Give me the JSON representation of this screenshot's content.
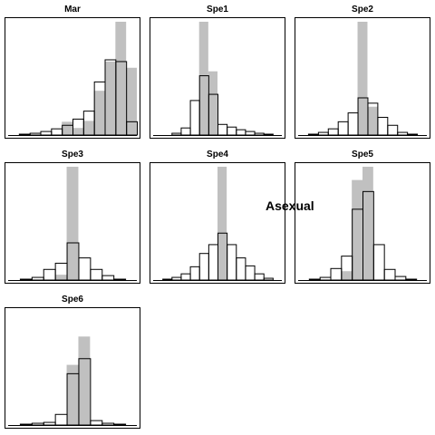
{
  "figure": {
    "overlay_label": "Asexual"
  },
  "chart_data": [
    {
      "type": "bar",
      "title": "Mar",
      "series": [
        {
          "name": "",
          "style": "outline",
          "color": "#000000",
          "values": [
            0,
            1,
            2,
            4,
            7,
            11,
            18,
            27,
            60,
            85,
            83,
            15
          ]
        },
        {
          "name": "",
          "style": "filled",
          "color": "#c0c0c0",
          "values": [
            0,
            0,
            0,
            0,
            0,
            15,
            8,
            16,
            50,
            83,
            128,
            76
          ]
        }
      ]
    },
    {
      "type": "bar",
      "title": "Spe1",
      "series": [
        {
          "name": "",
          "style": "outline",
          "color": "#000000",
          "values": [
            0,
            0,
            2,
            8,
            39,
            67,
            46,
            12,
            9,
            6,
            4,
            2,
            1,
            0
          ]
        },
        {
          "name": "",
          "style": "filled",
          "color": "#c0c0c0",
          "values": [
            0,
            0,
            0,
            0,
            0,
            128,
            72,
            0,
            0,
            0,
            0,
            0,
            0,
            0
          ]
        }
      ]
    },
    {
      "type": "bar",
      "title": "Spe2",
      "series": [
        {
          "name": "",
          "style": "outline",
          "color": "#000000",
          "values": [
            0,
            1,
            3,
            7,
            15,
            25,
            42,
            36,
            20,
            11,
            3,
            1,
            0
          ]
        },
        {
          "name": "",
          "style": "filled",
          "color": "#c0c0c0",
          "values": [
            0,
            0,
            0,
            0,
            0,
            0,
            128,
            32,
            0,
            0,
            0,
            0,
            0
          ]
        }
      ]
    },
    {
      "type": "bar",
      "title": "Spe3",
      "series": [
        {
          "name": "",
          "style": "outline",
          "color": "#000000",
          "values": [
            0,
            1,
            3,
            12,
            19,
            42,
            25,
            12,
            5,
            1,
            0
          ]
        },
        {
          "name": "",
          "style": "filled",
          "color": "#c0c0c0",
          "values": [
            0,
            0,
            0,
            0,
            6,
            128,
            0,
            0,
            0,
            0,
            0
          ]
        }
      ]
    },
    {
      "type": "bar",
      "title": "Spe4",
      "series": [
        {
          "name": "",
          "style": "outline",
          "color": "#000000",
          "values": [
            0,
            1,
            3,
            7,
            15,
            30,
            40,
            53,
            40,
            25,
            16,
            7,
            2,
            0
          ]
        },
        {
          "name": "",
          "style": "filled",
          "color": "#c0c0c0",
          "values": [
            0,
            0,
            0,
            0,
            0,
            0,
            0,
            128,
            0,
            0,
            0,
            0,
            0,
            0
          ]
        }
      ]
    },
    {
      "type": "bar",
      "title": "Spe5",
      "series": [
        {
          "name": "",
          "style": "outline",
          "color": "#000000",
          "values": [
            0,
            1,
            3,
            13,
            27,
            80,
            100,
            40,
            12,
            4,
            1,
            0
          ]
        },
        {
          "name": "",
          "style": "filled",
          "color": "#c0c0c0",
          "values": [
            0,
            0,
            0,
            0,
            10,
            113,
            128,
            0,
            0,
            0,
            0,
            0
          ]
        }
      ]
    },
    {
      "type": "bar",
      "title": "Spe6",
      "series": [
        {
          "name": "",
          "style": "outline",
          "color": "#000000",
          "values": [
            0,
            1,
            2,
            3,
            12,
            58,
            75,
            5,
            2,
            1,
            0
          ]
        },
        {
          "name": "",
          "style": "filled",
          "color": "#c0c0c0",
          "values": [
            0,
            0,
            0,
            0,
            0,
            68,
            100,
            0,
            0,
            0,
            0
          ]
        }
      ]
    }
  ]
}
